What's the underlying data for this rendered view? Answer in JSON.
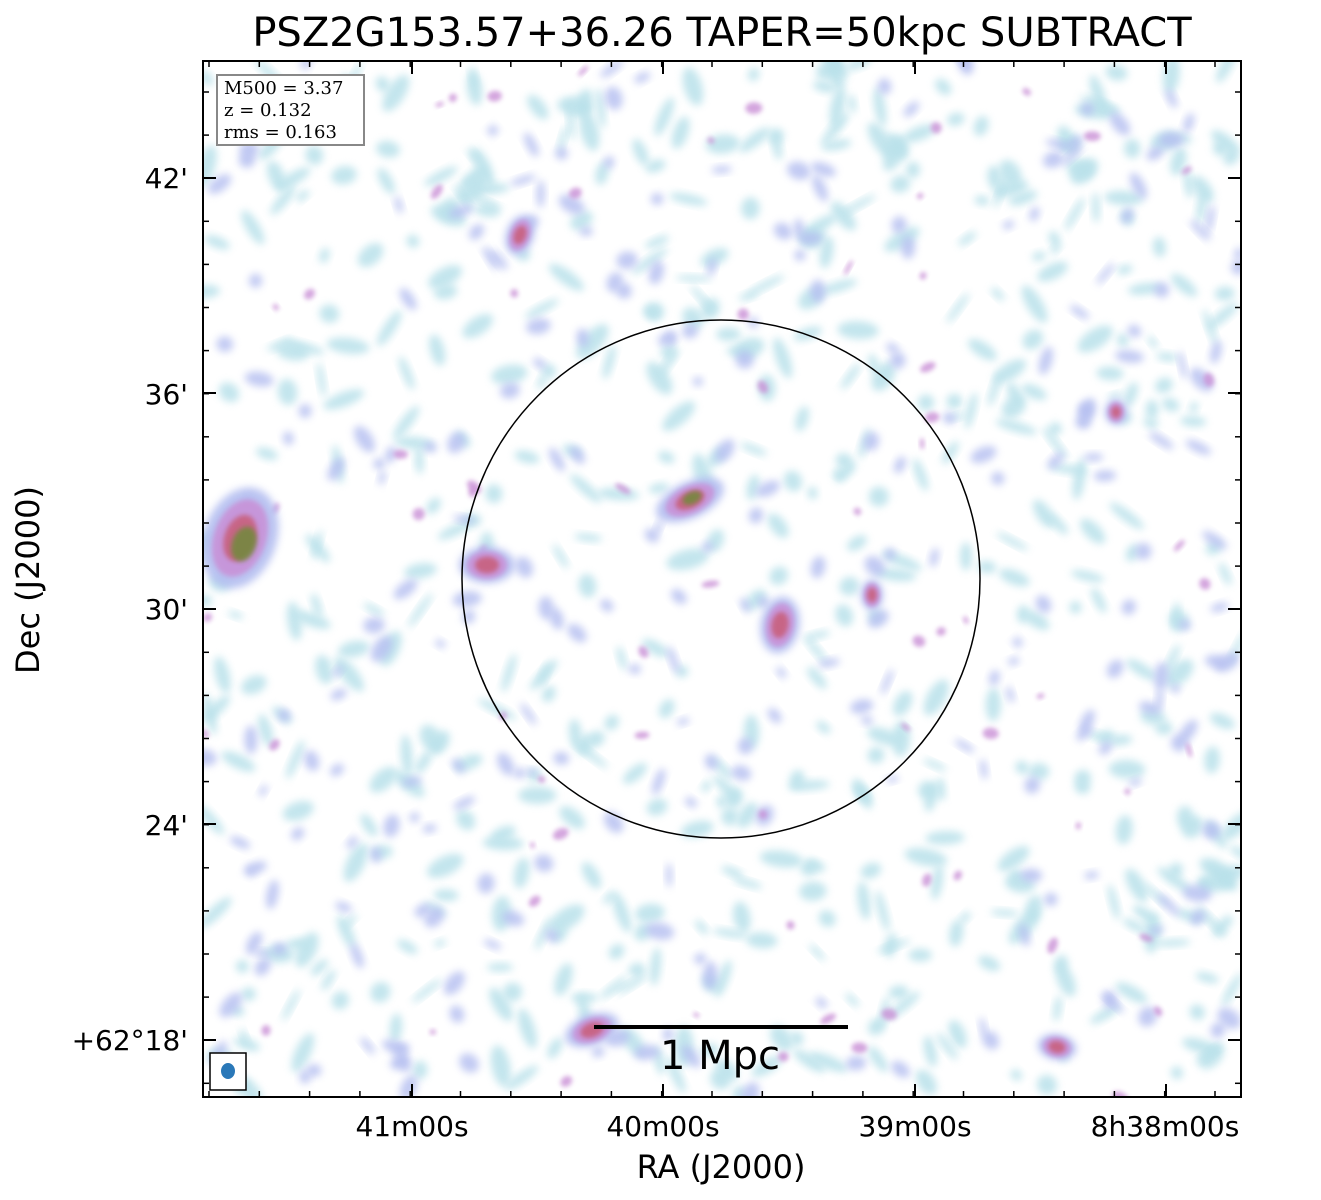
{
  "title": "PSZ2G153.57+36.26 TAPER=50kpc SUBTRACT",
  "info": {
    "m500": "M500 = 3.37",
    "z": "z = 0.132",
    "rms": "rms = 0.163"
  },
  "axes": {
    "xlabel": "RA (J2000)",
    "ylabel": "Dec (J2000)",
    "xticks": [
      "41m00s",
      "40m00s",
      "39m00s",
      "8h38m00s"
    ],
    "yticks": [
      "42'",
      "36'",
      "30'",
      "24'",
      "+62°18'"
    ]
  },
  "scalebar": {
    "label": "1 Mpc"
  },
  "colors": {
    "faint": "#b9e1ea",
    "low": "#b3bdf0",
    "mid": "#c98fd6",
    "high": "#c8607e",
    "peak": "#6f8a3a",
    "circle": "#000000",
    "beam": "#2a78b8"
  }
}
